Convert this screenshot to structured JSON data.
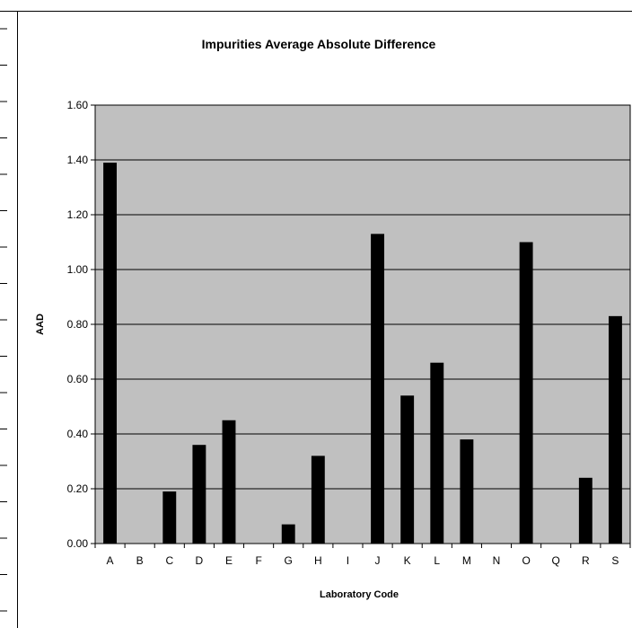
{
  "chart_data": {
    "type": "bar",
    "title": "Impurities Average Absolute Difference",
    "xlabel": "Laboratory Code",
    "ylabel": "AAD",
    "categories": [
      "A",
      "B",
      "C",
      "D",
      "E",
      "F",
      "G",
      "H",
      "I",
      "J",
      "K",
      "L",
      "M",
      "N",
      "O",
      "Q",
      "R",
      "S"
    ],
    "values": [
      1.39,
      0,
      0.19,
      0.36,
      0.45,
      0,
      0.07,
      0.32,
      0,
      1.13,
      0.54,
      0.66,
      0.38,
      0,
      1.1,
      0,
      0.24,
      0.83
    ],
    "ylim": [
      0,
      1.6
    ],
    "yticks": [
      "0.00",
      "0.20",
      "0.40",
      "0.60",
      "0.80",
      "1.00",
      "1.20",
      "1.40",
      "1.60"
    ],
    "grid": true,
    "legend": "none",
    "colors": {
      "bar": "#000000",
      "plot_bg": "#c0c0c0",
      "gridline": "#000000"
    }
  }
}
